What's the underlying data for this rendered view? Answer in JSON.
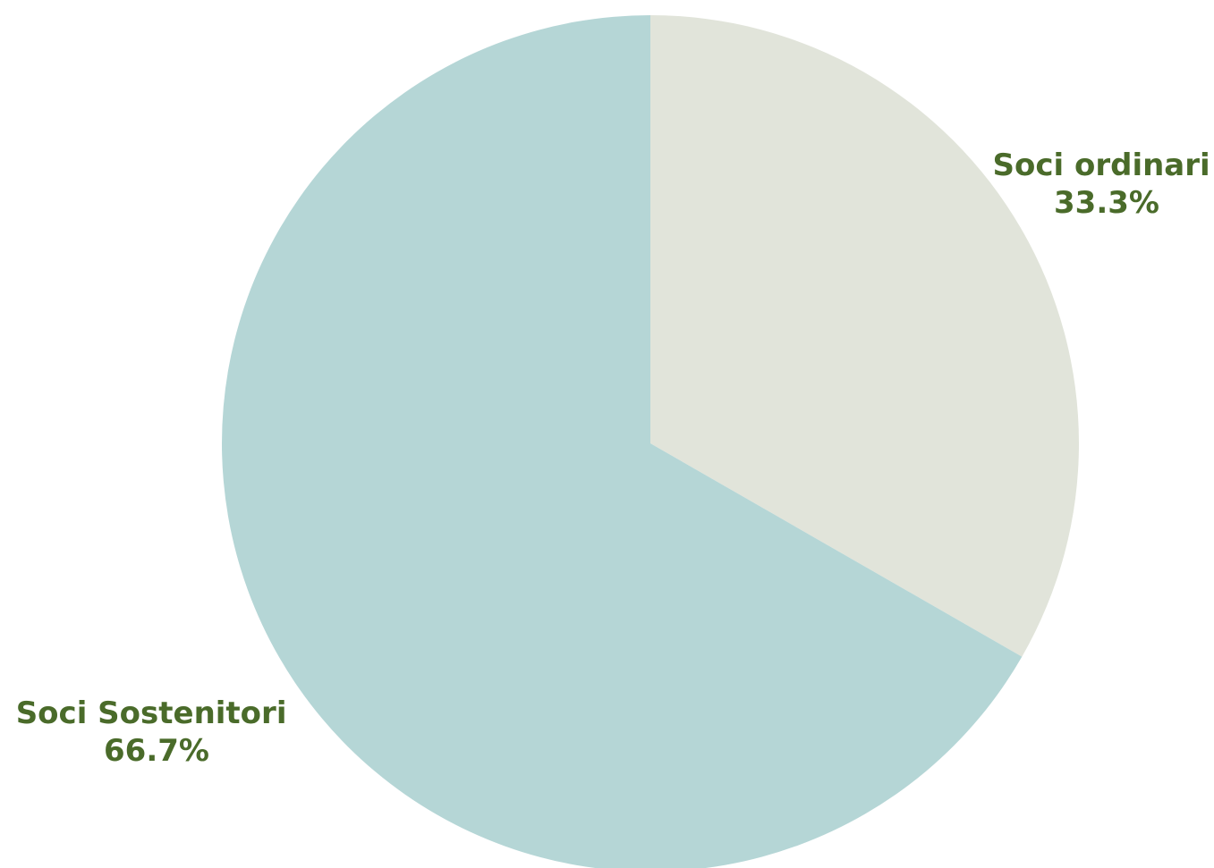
{
  "chart_data": {
    "type": "pie",
    "title": "",
    "start_angle_deg": 0,
    "direction": "clockwise",
    "label_color": "#4a6b2a",
    "slices": [
      {
        "label": "Soci ordinari",
        "value": 33.3,
        "display": "33.3%",
        "color": "#e1e4da"
      },
      {
        "label": "Soci Sostenitori",
        "value": 66.7,
        "display": "66.7%",
        "color": "#b5d6d6"
      }
    ]
  }
}
